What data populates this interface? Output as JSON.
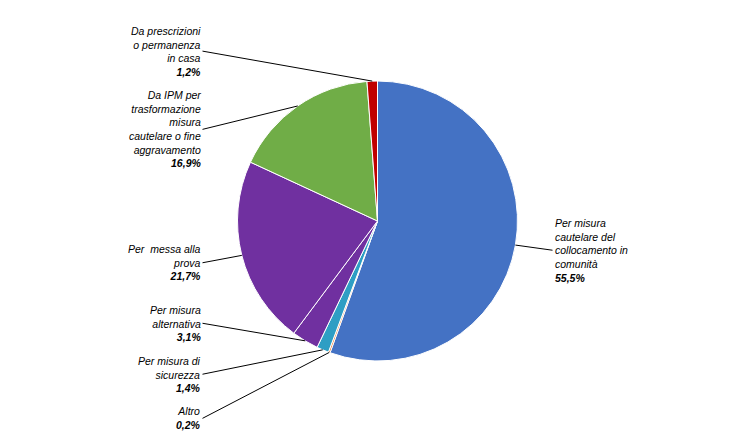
{
  "chart_data": {
    "type": "pie",
    "categories": [
      "Per misura\ncautelare del\ncollocamento in\ncomunità",
      "Altro",
      "Per misura di\nsicurezza",
      "Per misura\nalternativa",
      "Per  messa alla\nprova",
      "Da IPM per\ntrasformazione\nmisura\ncautelare o fine\naggravamento",
      "Da prescrizioni\no permanenza\nin casa"
    ],
    "values": [
      55.5,
      0.2,
      1.4,
      3.1,
      21.7,
      16.9,
      1.2
    ],
    "value_labels": [
      "55,5%",
      "0,2%",
      "1,4%",
      "3,1%",
      "21,7%",
      "16,9%",
      "1,2%"
    ],
    "colors": [
      "#4472C4",
      "#ED7D31",
      "#2E9EC4",
      "#7030A0",
      "#7030A0",
      "#70AD47",
      "#C00000"
    ],
    "data_labels": true
  }
}
